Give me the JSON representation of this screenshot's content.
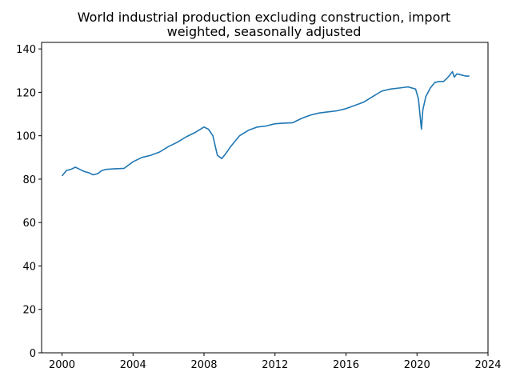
{
  "chart_data": {
    "type": "line",
    "title_lines": [
      "World industrial production excluding construction, import",
      "weighted, seasonally adjusted"
    ],
    "xlabel": "",
    "ylabel": "",
    "xlim": [
      1998.85,
      2024.0
    ],
    "ylim": [
      0,
      143
    ],
    "xticks": [
      2000,
      2004,
      2008,
      2012,
      2016,
      2020,
      2024
    ],
    "yticks": [
      0,
      20,
      40,
      60,
      80,
      100,
      120,
      140
    ],
    "grid": false,
    "legend": "none",
    "series": [
      {
        "color": "#1f77b4",
        "x": [
          2000.0,
          2000.25,
          2000.5,
          2000.75,
          2001.0,
          2001.25,
          2001.5,
          2001.75,
          2002.0,
          2002.25,
          2002.5,
          2003.0,
          2003.5,
          2004.0,
          2004.5,
          2005.0,
          2005.5,
          2006.0,
          2006.5,
          2007.0,
          2007.5,
          2008.0,
          2008.25,
          2008.5,
          2008.75,
          2009.0,
          2009.25,
          2009.5,
          2010.0,
          2010.5,
          2011.0,
          2011.5,
          2012.0,
          2012.5,
          2013.0,
          2013.5,
          2014.0,
          2014.5,
          2015.0,
          2015.5,
          2016.0,
          2016.5,
          2017.0,
          2017.5,
          2018.0,
          2018.5,
          2019.0,
          2019.5,
          2019.92,
          2020.08,
          2020.25,
          2020.33,
          2020.5,
          2020.75,
          2021.0,
          2021.25,
          2021.5,
          2021.75,
          2022.0,
          2022.1,
          2022.25,
          2022.5,
          2022.75,
          2022.95
        ],
        "y": [
          81.5,
          84.0,
          84.5,
          85.5,
          84.5,
          83.5,
          83.0,
          82.0,
          82.5,
          84.0,
          84.5,
          84.8,
          85.0,
          88.0,
          90.0,
          91.0,
          92.5,
          95.0,
          97.0,
          99.5,
          101.5,
          104.0,
          103.0,
          100.0,
          91.0,
          89.5,
          92.0,
          95.0,
          100.0,
          102.5,
          104.0,
          104.5,
          105.5,
          105.8,
          106.0,
          108.0,
          109.5,
          110.5,
          111.0,
          111.5,
          112.5,
          114.0,
          115.5,
          118.0,
          120.5,
          121.5,
          122.0,
          122.5,
          121.5,
          117.0,
          103.0,
          112.0,
          118.0,
          122.0,
          124.5,
          125.0,
          125.0,
          127.0,
          129.5,
          127.0,
          128.5,
          128.0,
          127.5,
          127.5
        ]
      }
    ]
  }
}
